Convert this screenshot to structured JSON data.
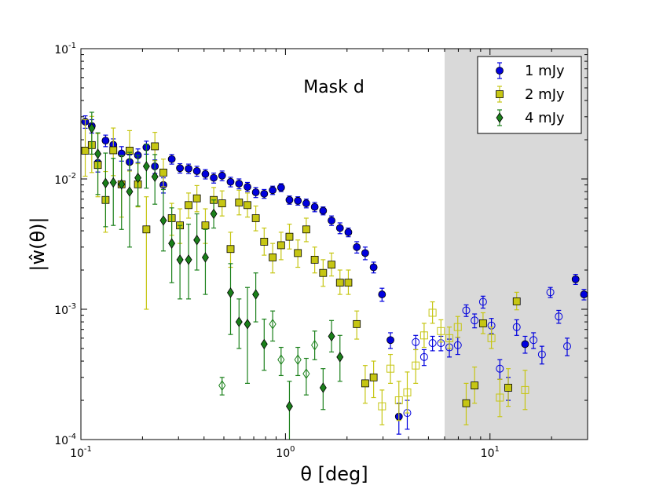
{
  "chart_data": {
    "type": "scatter",
    "xscale": "log",
    "yscale": "log",
    "xlim": [
      0.1,
      30
    ],
    "ylim": [
      0.0001,
      0.1
    ],
    "xlabel": "θ [deg]",
    "ylabel": "|ŵ(θ)|",
    "annotation": "Mask d",
    "shaded_region": {
      "x_from": 6.0,
      "x_to": 30,
      "color": "#d9d9d9"
    },
    "x_ticks": [
      {
        "value": 0.1,
        "base": "10",
        "exp": "-1"
      },
      {
        "value": 1,
        "base": "10",
        "exp": "0"
      },
      {
        "value": 10,
        "base": "10",
        "exp": "1"
      }
    ],
    "y_ticks": [
      {
        "value": 0.0001,
        "base": "10",
        "exp": "-4"
      },
      {
        "value": 0.001,
        "base": "10",
        "exp": "-3"
      },
      {
        "value": 0.01,
        "base": "10",
        "exp": "-2"
      },
      {
        "value": 0.1,
        "base": "10",
        "exp": "-1"
      }
    ],
    "legend": {
      "placement": "top-right"
    },
    "series": [
      {
        "name": "1 mJy",
        "marker": "circle",
        "color": "#0000dd",
        "points": [
          [
            0.105,
            0.0275,
            0.003,
            0.003,
            "f"
          ],
          [
            0.113,
            0.0255,
            0.003,
            0.003,
            "f"
          ],
          [
            0.121,
            0.0133,
            0.002,
            0.002,
            "f"
          ],
          [
            0.132,
            0.0197,
            0.002,
            0.002,
            "f"
          ],
          [
            0.144,
            0.0183,
            0.002,
            0.002,
            "f"
          ],
          [
            0.158,
            0.0157,
            0.002,
            0.002,
            "f"
          ],
          [
            0.173,
            0.0135,
            0.0018,
            0.0018,
            "f"
          ],
          [
            0.19,
            0.0152,
            0.0018,
            0.0018,
            "f"
          ],
          [
            0.209,
            0.0175,
            0.002,
            0.002,
            "f"
          ],
          [
            0.23,
            0.0125,
            0.0015,
            0.0015,
            "f"
          ],
          [
            0.253,
            0.009,
            0.0012,
            0.0012,
            "f"
          ],
          [
            0.278,
            0.0142,
            0.0012,
            0.0012,
            "f"
          ],
          [
            0.305,
            0.0121,
            0.001,
            0.001,
            "f"
          ],
          [
            0.336,
            0.012,
            0.001,
            0.001,
            "f"
          ],
          [
            0.369,
            0.0115,
            0.001,
            0.001,
            "f"
          ],
          [
            0.406,
            0.0109,
            0.0009,
            0.0009,
            "f"
          ],
          [
            0.446,
            0.0102,
            0.0009,
            0.0009,
            "f"
          ],
          [
            0.49,
            0.0106,
            0.0009,
            0.0009,
            "f"
          ],
          [
            0.539,
            0.0095,
            0.0008,
            0.0008,
            "f"
          ],
          [
            0.593,
            0.0092,
            0.0008,
            0.0008,
            "f"
          ],
          [
            0.652,
            0.0087,
            0.0007,
            0.0007,
            "f"
          ],
          [
            0.716,
            0.0079,
            0.0007,
            0.0007,
            "f"
          ],
          [
            0.787,
            0.0077,
            0.0006,
            0.0006,
            "f"
          ],
          [
            0.866,
            0.0082,
            0.0006,
            0.0006,
            "f"
          ],
          [
            0.952,
            0.0086,
            0.0006,
            0.0006,
            "f"
          ],
          [
            1.046,
            0.0069,
            0.0005,
            0.0005,
            "f"
          ],
          [
            1.15,
            0.0068,
            0.0005,
            0.0005,
            "f"
          ],
          [
            1.264,
            0.0065,
            0.0005,
            0.0005,
            "f"
          ],
          [
            1.39,
            0.0061,
            0.0005,
            0.0005,
            "f"
          ],
          [
            1.528,
            0.0057,
            0.0004,
            0.0004,
            "f"
          ],
          [
            1.68,
            0.0048,
            0.0004,
            0.0004,
            "f"
          ],
          [
            1.847,
            0.0042,
            0.0004,
            0.0004,
            "f"
          ],
          [
            2.03,
            0.0039,
            0.0003,
            0.0003,
            "f"
          ],
          [
            2.232,
            0.003,
            0.0003,
            0.0003,
            "f"
          ],
          [
            2.454,
            0.0027,
            0.0003,
            0.0003,
            "f"
          ],
          [
            2.698,
            0.0021,
            0.0002,
            0.0002,
            "f"
          ],
          [
            2.966,
            0.0013,
            0.00015,
            0.00015,
            "f"
          ],
          [
            3.261,
            0.00058,
            8e-05,
            8e-05,
            "f"
          ],
          [
            3.585,
            0.00015,
            4e-05,
            4e-05,
            "f"
          ],
          [
            3.941,
            0.00016,
            4e-05,
            4e-05,
            "o"
          ],
          [
            4.333,
            0.00056,
            7e-05,
            7e-05,
            "o"
          ],
          [
            4.763,
            0.00043,
            6e-05,
            6e-05,
            "o"
          ],
          [
            5.237,
            0.00055,
            7e-05,
            7e-05,
            "o"
          ],
          [
            5.757,
            0.00055,
            7e-05,
            7e-05,
            "o"
          ],
          [
            6.33,
            0.00051,
            8e-05,
            8e-05,
            "o"
          ],
          [
            6.958,
            0.00053,
            8e-05,
            8e-05,
            "o"
          ],
          [
            7.65,
            0.00098,
            0.0001,
            0.0001,
            "o"
          ],
          [
            8.41,
            0.00082,
            0.0001,
            0.0001,
            "o"
          ],
          [
            9.245,
            0.00114,
            0.00012,
            0.00012,
            "o"
          ],
          [
            10.164,
            0.00075,
            0.0001,
            0.0001,
            "o"
          ],
          [
            11.174,
            0.00035,
            6e-05,
            6e-05,
            "o"
          ],
          [
            12.284,
            0.00025,
            5e-05,
            5e-05,
            "o"
          ],
          [
            13.504,
            0.00073,
            0.0001,
            0.0001,
            "o"
          ],
          [
            14.846,
            0.00054,
            8e-05,
            8e-05,
            "f"
          ],
          [
            16.321,
            0.00058,
            8e-05,
            8e-05,
            "o"
          ],
          [
            17.943,
            0.00045,
            7e-05,
            7e-05,
            "o"
          ],
          [
            19.726,
            0.00135,
            0.00012,
            0.00012,
            "o"
          ],
          [
            21.686,
            0.00088,
            0.0001,
            0.0001,
            "o"
          ],
          [
            23.84,
            0.00052,
            8e-05,
            8e-05,
            "o"
          ],
          [
            26.209,
            0.0017,
            0.00015,
            0.00015,
            "f"
          ],
          [
            28.813,
            0.0013,
            0.00012,
            0.00012,
            "f"
          ]
        ]
      },
      {
        "name": "2 mJy",
        "marker": "square",
        "color": "#c6c613",
        "points": [
          [
            0.105,
            0.0165,
            0.012,
            0.006,
            "f"
          ],
          [
            0.113,
            0.0182,
            0.012,
            0.007,
            "f"
          ],
          [
            0.121,
            0.0128,
            0.0095,
            0.0055,
            "f"
          ],
          [
            0.132,
            0.0069,
            0.0045,
            0.003,
            "f"
          ],
          [
            0.144,
            0.0166,
            0.008,
            0.006,
            "f"
          ],
          [
            0.158,
            0.0091,
            0.006,
            0.004,
            "f"
          ],
          [
            0.173,
            0.0165,
            0.007,
            0.005,
            "f"
          ],
          [
            0.19,
            0.0091,
            0.004,
            0.003,
            "f"
          ],
          [
            0.209,
            0.0041,
            0.0032,
            0.0031,
            "f"
          ],
          [
            0.23,
            0.0178,
            0.005,
            0.004,
            "f"
          ],
          [
            0.253,
            0.0112,
            0.003,
            0.0025,
            "f"
          ],
          [
            0.278,
            0.005,
            0.0015,
            0.0013,
            "f"
          ],
          [
            0.305,
            0.0044,
            0.0015,
            0.0012,
            "f"
          ],
          [
            0.336,
            0.0063,
            0.0015,
            0.0013,
            "f"
          ],
          [
            0.369,
            0.0071,
            0.0018,
            0.0015,
            "f"
          ],
          [
            0.406,
            0.0044,
            0.0015,
            0.0012,
            "f"
          ],
          [
            0.446,
            0.0069,
            0.0017,
            0.0014,
            "f"
          ],
          [
            0.49,
            0.0065,
            0.0016,
            0.0013,
            "f"
          ],
          [
            0.539,
            0.0029,
            0.001,
            0.0008,
            "f"
          ],
          [
            0.593,
            0.0066,
            0.0016,
            0.0013,
            "f"
          ],
          [
            0.652,
            0.0063,
            0.0015,
            0.0012,
            "f"
          ],
          [
            0.716,
            0.005,
            0.0012,
            0.001,
            "f"
          ],
          [
            0.787,
            0.0033,
            0.0009,
            0.0007,
            "f"
          ],
          [
            0.866,
            0.0025,
            0.0007,
            0.0006,
            "f"
          ],
          [
            0.952,
            0.0031,
            0.0008,
            0.0007,
            "f"
          ],
          [
            1.046,
            0.0036,
            0.0009,
            0.0007,
            "f"
          ],
          [
            1.15,
            0.0027,
            0.0007,
            0.0006,
            "f"
          ],
          [
            1.264,
            0.0041,
            0.0009,
            0.0008,
            "f"
          ],
          [
            1.39,
            0.0024,
            0.0006,
            0.0005,
            "f"
          ],
          [
            1.528,
            0.0019,
            0.0005,
            0.0004,
            "f"
          ],
          [
            1.68,
            0.0022,
            0.0005,
            0.0004,
            "f"
          ],
          [
            1.847,
            0.0016,
            0.0004,
            0.0003,
            "f"
          ],
          [
            2.03,
            0.0016,
            0.0004,
            0.0003,
            "f"
          ],
          [
            2.232,
            0.00077,
            0.0002,
            0.00018,
            "f"
          ],
          [
            2.454,
            0.00027,
            0.0001,
            8e-05,
            "f"
          ],
          [
            2.698,
            0.0003,
            0.0001,
            9e-05,
            "f"
          ],
          [
            2.966,
            0.00018,
            6e-05,
            5e-05,
            "o"
          ],
          [
            3.261,
            0.00035,
            0.0001,
            8e-05,
            "o"
          ],
          [
            3.585,
            0.0002,
            8e-05,
            6e-05,
            "o"
          ],
          [
            3.941,
            0.00023,
            0.0001,
            7e-05,
            "o"
          ],
          [
            4.333,
            0.00037,
            0.00012,
            0.0001,
            "o"
          ],
          [
            4.763,
            0.00063,
            0.00015,
            0.00012,
            "o"
          ],
          [
            5.237,
            0.00094,
            0.0002,
            0.00016,
            "o"
          ],
          [
            5.757,
            0.00068,
            0.00015,
            0.00012,
            "o"
          ],
          [
            6.33,
            0.0006,
            0.00013,
            0.0001,
            "o"
          ],
          [
            6.958,
            0.00073,
            0.00015,
            0.00012,
            "o"
          ],
          [
            7.65,
            0.00019,
            8e-05,
            6e-05,
            "f"
          ],
          [
            8.41,
            0.00026,
            0.0001,
            7e-05,
            "f"
          ],
          [
            9.245,
            0.00078,
            0.00016,
            0.00013,
            "f"
          ],
          [
            10.164,
            0.0006,
            0.00013,
            0.0001,
            "o"
          ],
          [
            11.174,
            0.00021,
            8e-05,
            6e-05,
            "o"
          ],
          [
            12.284,
            0.00025,
            0.0001,
            7e-05,
            "f"
          ],
          [
            13.504,
            0.00115,
            0.0002,
            0.00016,
            "f"
          ],
          [
            14.846,
            0.00024,
            0.0001,
            7e-05,
            "o"
          ]
        ]
      },
      {
        "name": "4 mJy",
        "marker": "diamond",
        "color": "#1a801a",
        "points": [
          [
            0.113,
            0.0245,
            0.008,
            0.009,
            "f"
          ],
          [
            0.121,
            0.0156,
            0.007,
            0.008,
            "f"
          ],
          [
            0.132,
            0.0093,
            0.0065,
            0.005,
            "f"
          ],
          [
            0.144,
            0.0094,
            0.005,
            0.005,
            "f"
          ],
          [
            0.158,
            0.0091,
            0.006,
            0.005,
            "f"
          ],
          [
            0.173,
            0.008,
            0.008,
            0.005,
            "f"
          ],
          [
            0.19,
            0.0102,
            0.005,
            0.004,
            "f"
          ],
          [
            0.209,
            0.0125,
            0.006,
            0.004,
            "f"
          ],
          [
            0.23,
            0.0104,
            0.005,
            0.004,
            "f"
          ],
          [
            0.253,
            0.0048,
            0.0035,
            0.002,
            "f"
          ],
          [
            0.278,
            0.0032,
            0.0028,
            0.0016,
            "f"
          ],
          [
            0.305,
            0.0024,
            0.002,
            0.0012,
            "f"
          ],
          [
            0.336,
            0.0024,
            0.0021,
            0.0012,
            "f"
          ],
          [
            0.369,
            0.0034,
            0.002,
            0.0014,
            "f"
          ],
          [
            0.406,
            0.0025,
            0.0016,
            0.0012,
            "f"
          ],
          [
            0.446,
            0.0054,
            0.0015,
            0.0012,
            "f"
          ],
          [
            0.49,
            0.00026,
            4e-05,
            4e-05,
            "o"
          ],
          [
            0.539,
            0.00134,
            0.0009,
            0.0007,
            "f"
          ],
          [
            0.593,
            0.0008,
            0.0004,
            0.0003,
            "f"
          ],
          [
            0.652,
            0.00077,
            0.0007,
            0.0005,
            "f"
          ],
          [
            0.716,
            0.0013,
            0.0006,
            0.0005,
            "f"
          ],
          [
            0.787,
            0.00054,
            0.0003,
            0.0002,
            "f"
          ],
          [
            0.866,
            0.00077,
            0.0002,
            0.0002,
            "o"
          ],
          [
            0.952,
            0.00041,
            0.0001,
            0.0001,
            "o"
          ],
          [
            1.046,
            0.00018,
            0.0001,
            0.0001,
            "f"
          ],
          [
            1.15,
            0.00041,
            0.0001,
            0.0001,
            "o"
          ],
          [
            1.264,
            0.00032,
            0.0001,
            0.0001,
            "o"
          ],
          [
            1.39,
            0.00053,
            0.00015,
            0.00012,
            "o"
          ],
          [
            1.528,
            0.00025,
            0.0001,
            8e-05,
            "f"
          ],
          [
            1.68,
            0.00062,
            0.0002,
            0.00015,
            "f"
          ],
          [
            1.847,
            0.00043,
            0.0002,
            0.00015,
            "f"
          ]
        ]
      }
    ]
  }
}
